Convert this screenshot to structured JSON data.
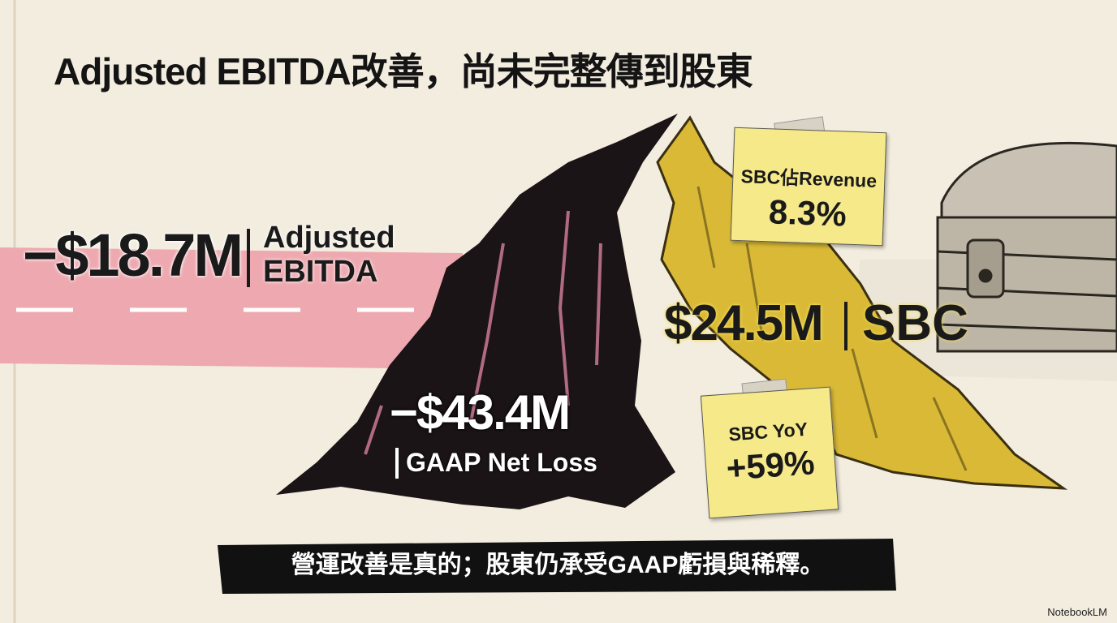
{
  "title": "Adjusted EBITDA改善，尚未完整傳到股東",
  "metrics": [
    {
      "value": "−$18.7M",
      "label": "Adjusted EBITDA"
    },
    {
      "value": "−$43.4M",
      "label": "GAAP Net Loss"
    },
    {
      "value": "$24.5M",
      "label": "SBC"
    }
  ],
  "notes": [
    {
      "label": "SBC佔Revenue",
      "value": "8.3%"
    },
    {
      "label": "SBC YoY",
      "value": "+59%"
    }
  ],
  "banner": "營運改善是真的；股東仍承受GAAP虧損與稀釋。",
  "watermark": "NotebookLM"
}
